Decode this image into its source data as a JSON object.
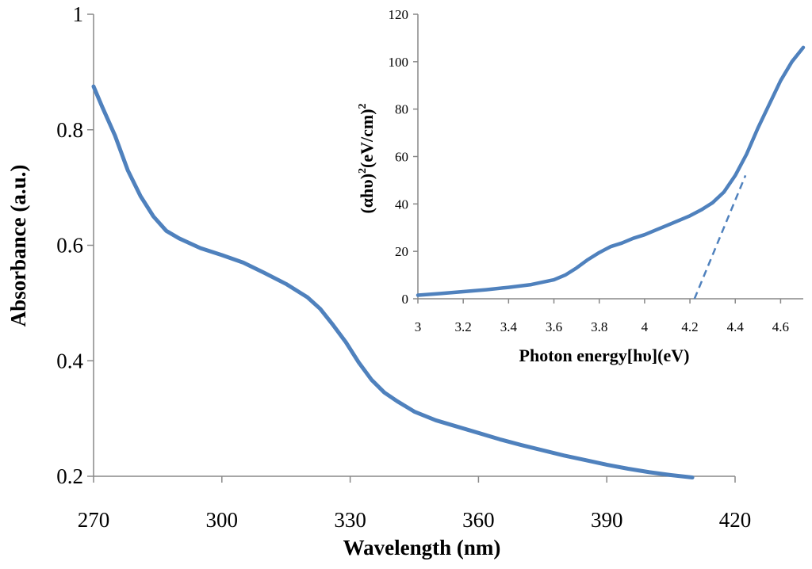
{
  "chart_data": [
    {
      "type": "line",
      "title": "",
      "xlabel": "Wavelength (nm)",
      "ylabel": "Absorbance (a.u.)",
      "xlim": [
        270,
        420
      ],
      "ylim": [
        0.2,
        1.0
      ],
      "xticks": [
        "270",
        "300",
        "330",
        "360",
        "390",
        "420"
      ],
      "yticks": [
        "0.2",
        "0.4",
        "0.6",
        "0.8",
        "1"
      ],
      "grid": false,
      "color": "#4f81bd",
      "series": [
        {
          "name": "Absorbance",
          "x": [
            270,
            272,
            275,
            278,
            281,
            284,
            287,
            290,
            295,
            300,
            305,
            310,
            315,
            320,
            323,
            326,
            329,
            332,
            335,
            338,
            341,
            345,
            350,
            355,
            360,
            365,
            370,
            375,
            380,
            385,
            390,
            395,
            400,
            405,
            410
          ],
          "y": [
            0.875,
            0.84,
            0.79,
            0.73,
            0.685,
            0.65,
            0.625,
            0.612,
            0.595,
            0.583,
            0.57,
            0.552,
            0.533,
            0.51,
            0.49,
            0.462,
            0.432,
            0.397,
            0.367,
            0.345,
            0.33,
            0.312,
            0.297,
            0.286,
            0.275,
            0.264,
            0.254,
            0.245,
            0.236,
            0.228,
            0.22,
            0.213,
            0.207,
            0.202,
            0.198
          ]
        }
      ]
    },
    {
      "type": "line",
      "title": "",
      "xlabel": "Photon energy[hυ](eV)",
      "ylabel_base": "(αhυ)",
      "ylabel_sup1": "2",
      "ylabel_mid": "(eV/cm)",
      "ylabel_sup2": "2",
      "xlim": [
        3,
        4.7
      ],
      "ylim": [
        0,
        120
      ],
      "xticks": [
        "3",
        "3.2",
        "3.4",
        "3.6",
        "3.8",
        "4",
        "4.2",
        "4.4",
        "4.6"
      ],
      "yticks": [
        "0",
        "20",
        "40",
        "60",
        "80",
        "100",
        "120"
      ],
      "grid": false,
      "color": "#4f81bd",
      "series": [
        {
          "name": "(αhυ)^2",
          "x": [
            3.0,
            3.1,
            3.2,
            3.3,
            3.4,
            3.5,
            3.6,
            3.65,
            3.7,
            3.75,
            3.8,
            3.85,
            3.9,
            3.95,
            4.0,
            4.05,
            4.1,
            4.15,
            4.2,
            4.25,
            4.3,
            4.35,
            4.4,
            4.45,
            4.5,
            4.55,
            4.6,
            4.65,
            4.7
          ],
          "y": [
            1.5,
            2.2,
            3.0,
            3.8,
            4.8,
            6.0,
            8.0,
            10.0,
            13.0,
            16.5,
            19.5,
            22.0,
            23.5,
            25.5,
            27.0,
            29.0,
            31.0,
            33.0,
            35.0,
            37.5,
            40.5,
            45.0,
            52.0,
            61.0,
            72.0,
            82.0,
            92.0,
            100.0,
            106.0
          ]
        },
        {
          "name": "linear fit (dashed)",
          "dashed": true,
          "x": [
            4.22,
            4.445
          ],
          "y": [
            0,
            52
          ]
        }
      ]
    }
  ]
}
